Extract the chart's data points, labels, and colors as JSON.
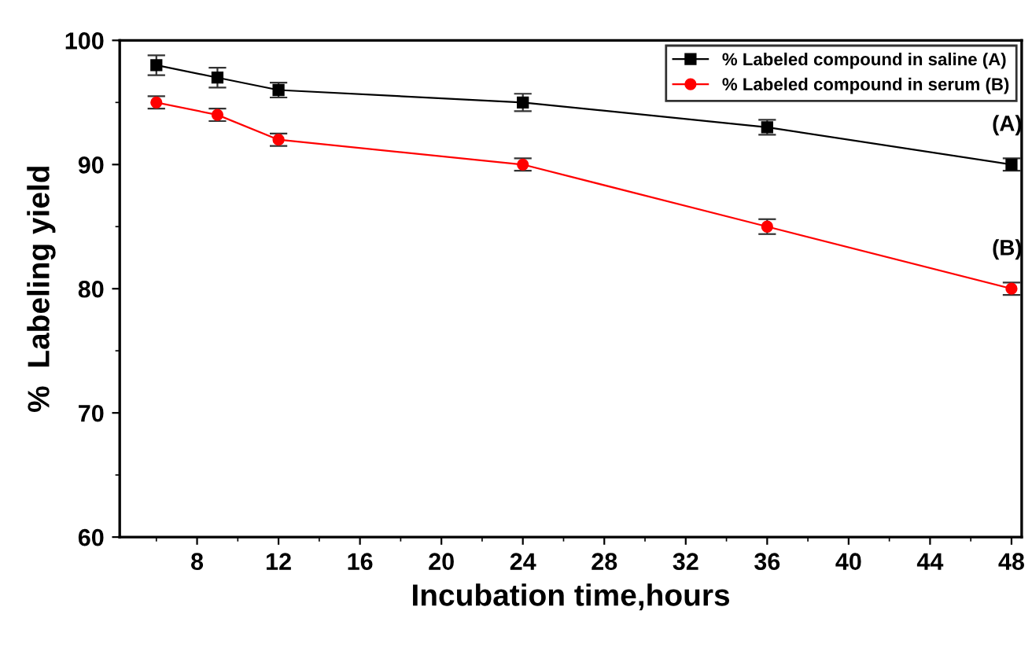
{
  "chart_data": {
    "type": "line",
    "xlabel": "Incubation time,hours",
    "ylabel": "%  Labeling yield",
    "x": [
      6,
      9,
      12,
      24,
      36,
      48
    ],
    "series": [
      {
        "name": "% Labeled compound in saline (A)",
        "color": "#000000",
        "marker": "square",
        "values": [
          98,
          97,
          96,
          95,
          93,
          90
        ],
        "errors": [
          0.8,
          0.8,
          0.6,
          0.7,
          0.6,
          0.5
        ]
      },
      {
        "name": "% Labeled compound in serum (B)",
        "color": "#ff0000",
        "marker": "circle",
        "values": [
          95,
          94,
          92,
          90,
          85,
          80
        ],
        "errors": [
          0.5,
          0.5,
          0.5,
          0.5,
          0.6,
          0.5
        ]
      }
    ],
    "annotations": [
      "(A)",
      "(B)"
    ],
    "xlim": [
      4.2,
      48.5
    ],
    "xticks": [
      8,
      12,
      16,
      20,
      24,
      28,
      32,
      36,
      40,
      44,
      48
    ],
    "ylim": [
      60,
      100
    ],
    "yticks": [
      60,
      70,
      80,
      90,
      100
    ],
    "legend": "top right",
    "grid": false,
    "line_style": "solid"
  }
}
